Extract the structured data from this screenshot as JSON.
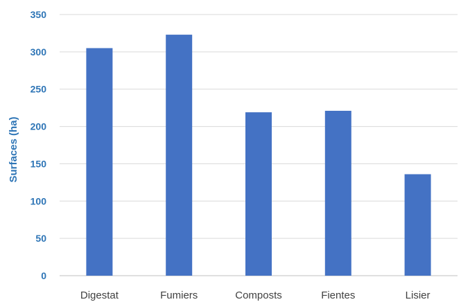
{
  "chart_data": {
    "type": "bar",
    "categories": [
      "Digestat",
      "Fumiers",
      "Composts",
      "Fientes",
      "Lisier"
    ],
    "values": [
      305,
      323,
      219,
      221,
      136
    ],
    "title": "",
    "xlabel": "",
    "ylabel": "Surfaces (ha)",
    "ylim": [
      0,
      350
    ],
    "yticks": [
      0,
      50,
      100,
      150,
      200,
      250,
      300,
      350
    ],
    "grid": true,
    "legend": "none",
    "colors": {
      "bar": "#4472c4",
      "axis_text": "#2e75b6",
      "category_text": "#404040",
      "grid": "#d9d9d9"
    }
  }
}
